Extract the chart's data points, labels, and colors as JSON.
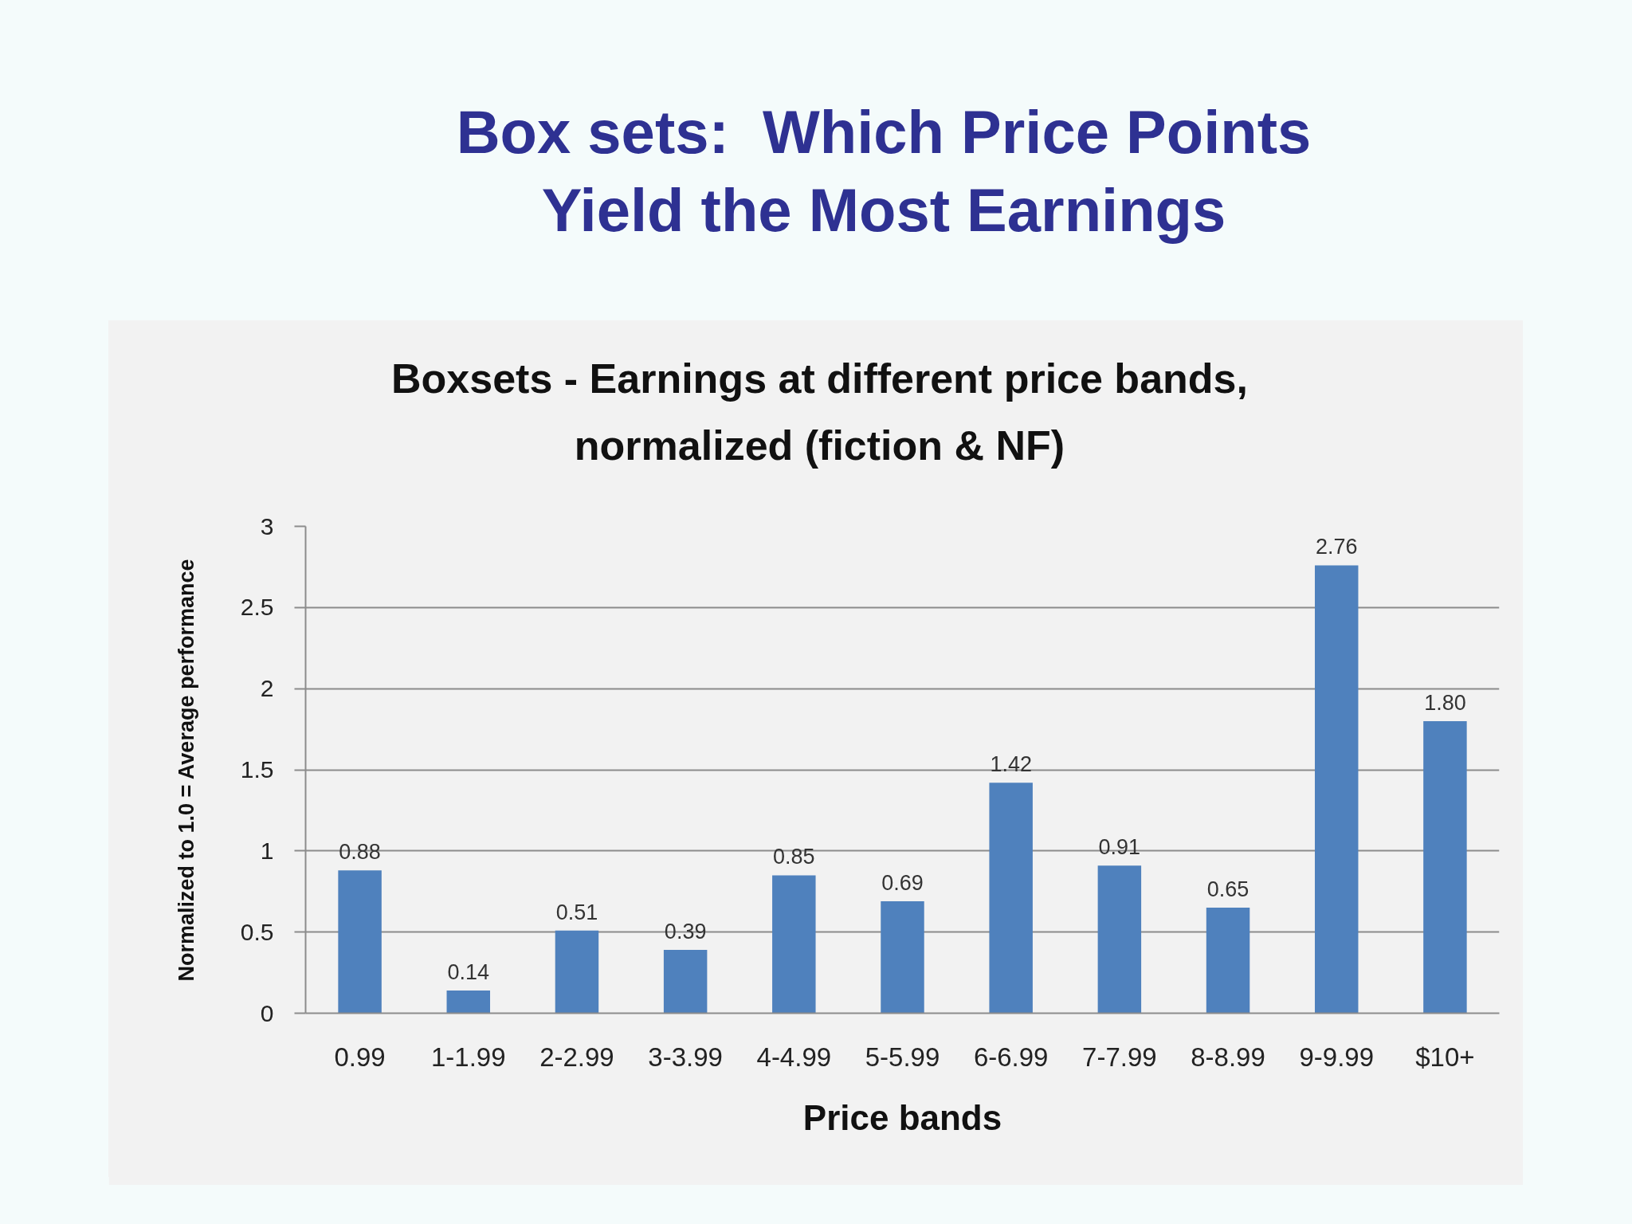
{
  "chart_data": {
    "type": "bar",
    "title": "Box sets:  Which Price Points\nYield the Most Earnings",
    "subtitle": "Boxsets - Earnings at different price bands,\nnormalized (fiction & NF)",
    "xlabel": "Price bands",
    "ylabel": "Normalized to 1.0 = Average performance",
    "categories": [
      "0.99",
      "1-1.99",
      "2-2.99",
      "3-3.99",
      "4-4.99",
      "5-5.99",
      "6-6.99",
      "7-7.99",
      "8-8.99",
      "9-9.99",
      "$10+"
    ],
    "values": [
      0.88,
      0.14,
      0.51,
      0.39,
      0.85,
      0.69,
      1.42,
      0.91,
      0.65,
      2.76,
      1.8
    ],
    "value_labels": [
      "0.88",
      "0.14",
      "0.51",
      "0.39",
      "0.85",
      "0.69",
      "1.42",
      "0.91",
      "0.65",
      "2.76",
      "1.80"
    ],
    "color": "#4f81bd",
    "ylim": [
      0,
      3
    ],
    "yticks": [
      0,
      0.5,
      1,
      1.5,
      2,
      2.5,
      3
    ],
    "grid": "y"
  }
}
